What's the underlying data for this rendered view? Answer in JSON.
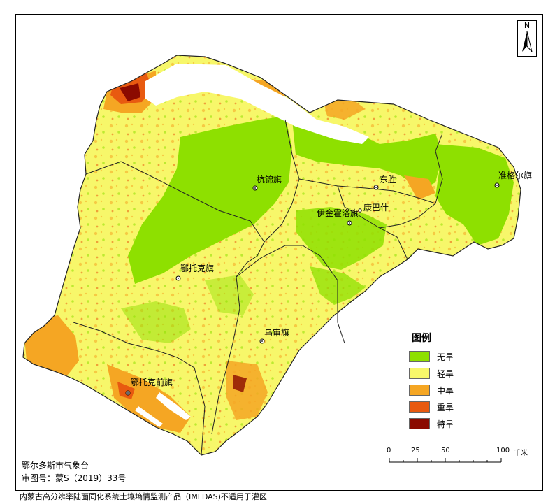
{
  "places": [
    {
      "name": "杭锦旗"
    },
    {
      "name": "东胜"
    },
    {
      "name": "准格尔旗"
    },
    {
      "name": "伊金霍洛旗"
    },
    {
      "name": "康巴什"
    },
    {
      "name": "鄂托克旗"
    },
    {
      "name": "乌审旗"
    },
    {
      "name": "鄂托克前旗"
    }
  ],
  "legend": {
    "title": "图例",
    "items": [
      {
        "label": "无旱",
        "color": "#8ee000"
      },
      {
        "label": "轻旱",
        "color": "#f7f76a"
      },
      {
        "label": "中旱",
        "color": "#f5a623"
      },
      {
        "label": "重旱",
        "color": "#e85a10"
      },
      {
        "label": "特旱",
        "color": "#8b0a00"
      }
    ]
  },
  "north_arrow": {
    "letter": "N"
  },
  "scale_bar": {
    "ticks": [
      "0",
      "25",
      "50",
      "100"
    ],
    "unit": "千米"
  },
  "credits": {
    "agency": "鄂尔多斯市气象台",
    "review_number": "审图号：蒙S（2019）33号"
  },
  "footer": "内蒙古高分辨率陆面同化系统土壤墒情监测产品（IMLDAS)不适用于灌区"
}
